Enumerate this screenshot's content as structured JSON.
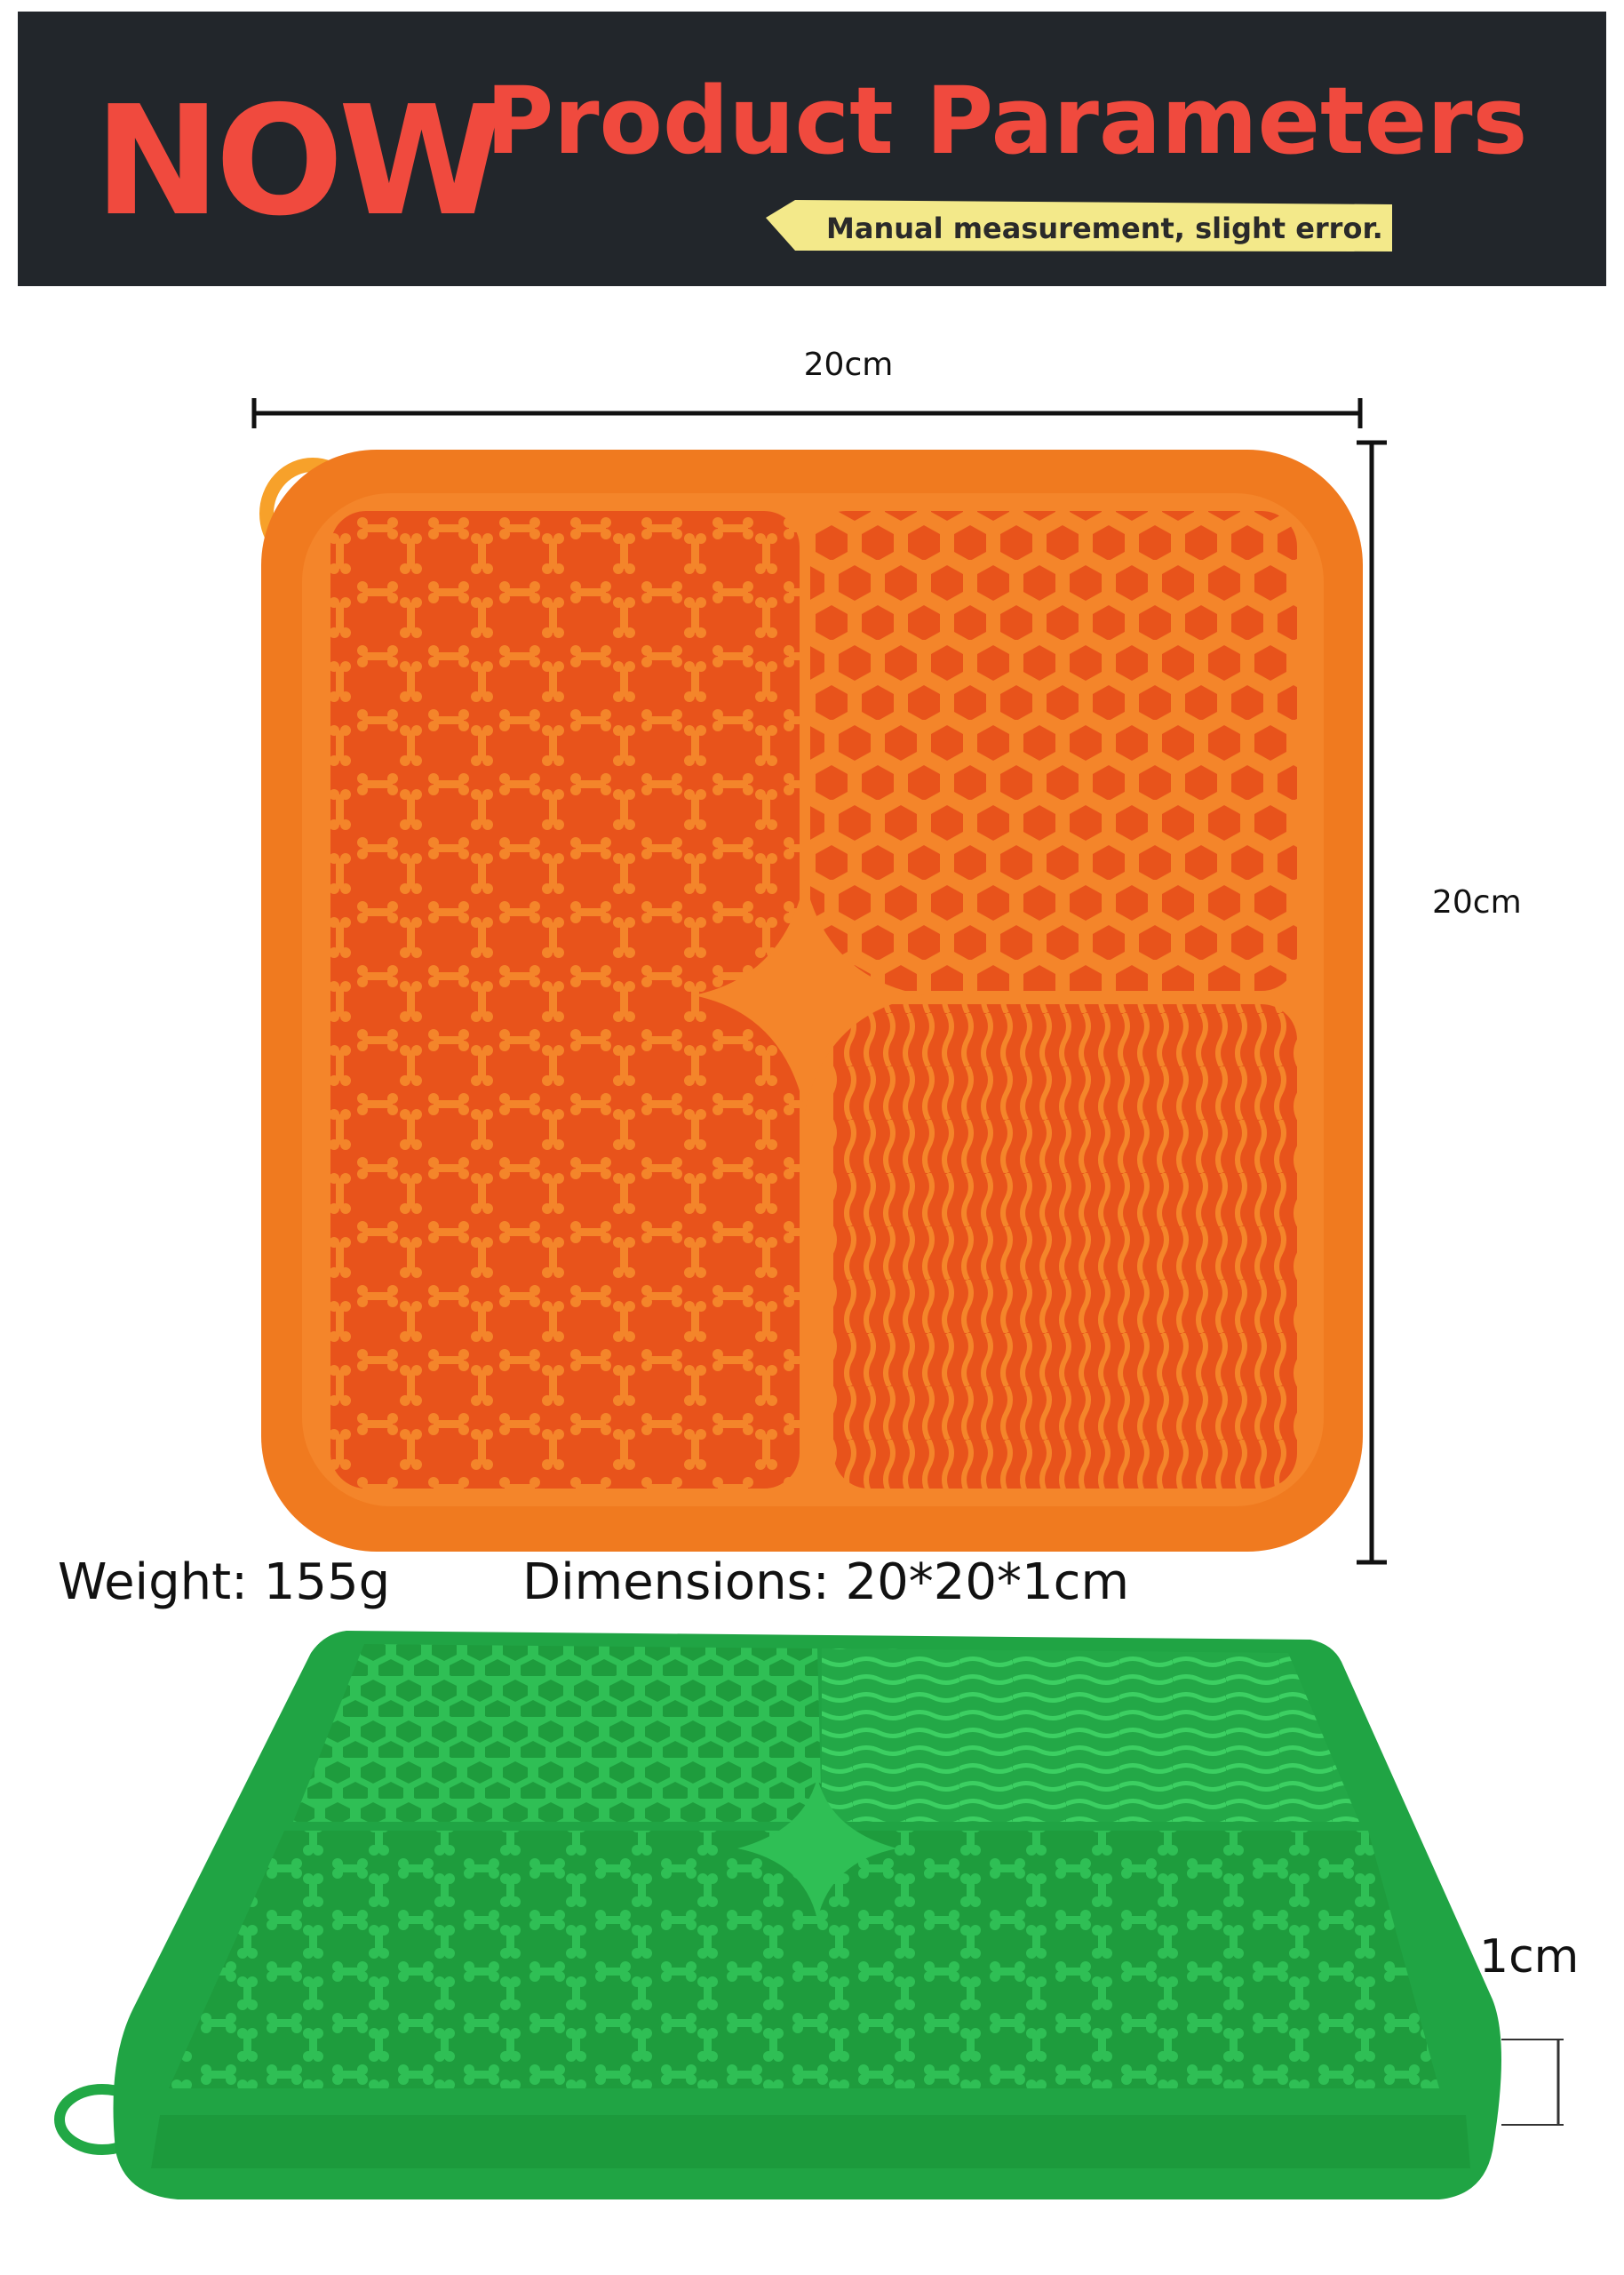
{
  "header": {
    "badge": "NOW",
    "title": "Product Parameters",
    "note": "Manual measurement, slight error."
  },
  "dimensions": {
    "width_label": "20cm",
    "height_label": "20cm",
    "thickness_label": "1cm"
  },
  "specs": {
    "weight": "Weight: 155g",
    "dimensions": "Dimensions: 20*20*1cm"
  }
}
